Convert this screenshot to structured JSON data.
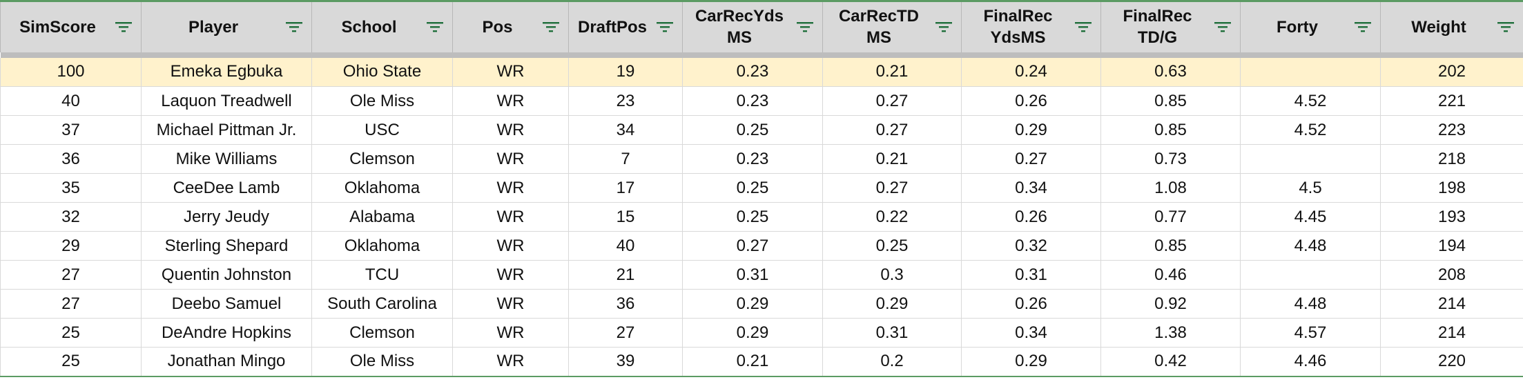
{
  "table": {
    "columns": [
      {
        "label": "SimScore",
        "icon": "filter-icon"
      },
      {
        "label": "Player",
        "icon": "filter-icon"
      },
      {
        "label": "School",
        "icon": "filter-icon"
      },
      {
        "label": "Pos",
        "icon": "filter-icon"
      },
      {
        "label": "DraftPos",
        "icon": "filter-icon"
      },
      {
        "label": "CarRecYds\nMS",
        "icon": "filter-icon"
      },
      {
        "label": "CarRecTD\nMS",
        "icon": "filter-icon"
      },
      {
        "label": "FinalRec\nYdsMS",
        "icon": "filter-icon"
      },
      {
        "label": "FinalRec\nTD/G",
        "icon": "filter-icon"
      },
      {
        "label": "Forty",
        "icon": "filter-icon"
      },
      {
        "label": "Weight",
        "icon": "filter-icon"
      }
    ],
    "rows": [
      [
        "100",
        "Emeka Egbuka",
        "Ohio State",
        "WR",
        "19",
        "0.23",
        "0.21",
        "0.24",
        "0.63",
        "",
        "202"
      ],
      [
        "40",
        "Laquon Treadwell",
        "Ole Miss",
        "WR",
        "23",
        "0.23",
        "0.27",
        "0.26",
        "0.85",
        "4.52",
        "221"
      ],
      [
        "37",
        "Michael Pittman Jr.",
        "USC",
        "WR",
        "34",
        "0.25",
        "0.27",
        "0.29",
        "0.85",
        "4.52",
        "223"
      ],
      [
        "36",
        "Mike Williams",
        "Clemson",
        "WR",
        "7",
        "0.23",
        "0.21",
        "0.27",
        "0.73",
        "",
        "218"
      ],
      [
        "35",
        "CeeDee Lamb",
        "Oklahoma",
        "WR",
        "17",
        "0.25",
        "0.27",
        "0.34",
        "1.08",
        "4.5",
        "198"
      ],
      [
        "32",
        "Jerry Jeudy",
        "Alabama",
        "WR",
        "15",
        "0.25",
        "0.22",
        "0.26",
        "0.77",
        "4.45",
        "193"
      ],
      [
        "29",
        "Sterling Shepard",
        "Oklahoma",
        "WR",
        "40",
        "0.27",
        "0.25",
        "0.32",
        "0.85",
        "4.48",
        "194"
      ],
      [
        "27",
        "Quentin Johnston",
        "TCU",
        "WR",
        "21",
        "0.31",
        "0.3",
        "0.31",
        "0.46",
        "",
        "208"
      ],
      [
        "27",
        "Deebo Samuel",
        "South Carolina",
        "WR",
        "36",
        "0.29",
        "0.29",
        "0.26",
        "0.92",
        "4.48",
        "214"
      ],
      [
        "25",
        "DeAndre Hopkins",
        "Clemson",
        "WR",
        "27",
        "0.29",
        "0.31",
        "0.34",
        "1.38",
        "4.57",
        "214"
      ],
      [
        "25",
        "Jonathan Mingo",
        "Ole Miss",
        "WR",
        "39",
        "0.21",
        "0.2",
        "0.29",
        "0.42",
        "4.46",
        "220"
      ]
    ],
    "highlighted_row": 0,
    "colors": {
      "header_bg": "#d9d9d9",
      "highlight_bg": "#fff2cc",
      "filter_icon": "#1e6e3a",
      "border_accent": "#5b9b63"
    }
  }
}
